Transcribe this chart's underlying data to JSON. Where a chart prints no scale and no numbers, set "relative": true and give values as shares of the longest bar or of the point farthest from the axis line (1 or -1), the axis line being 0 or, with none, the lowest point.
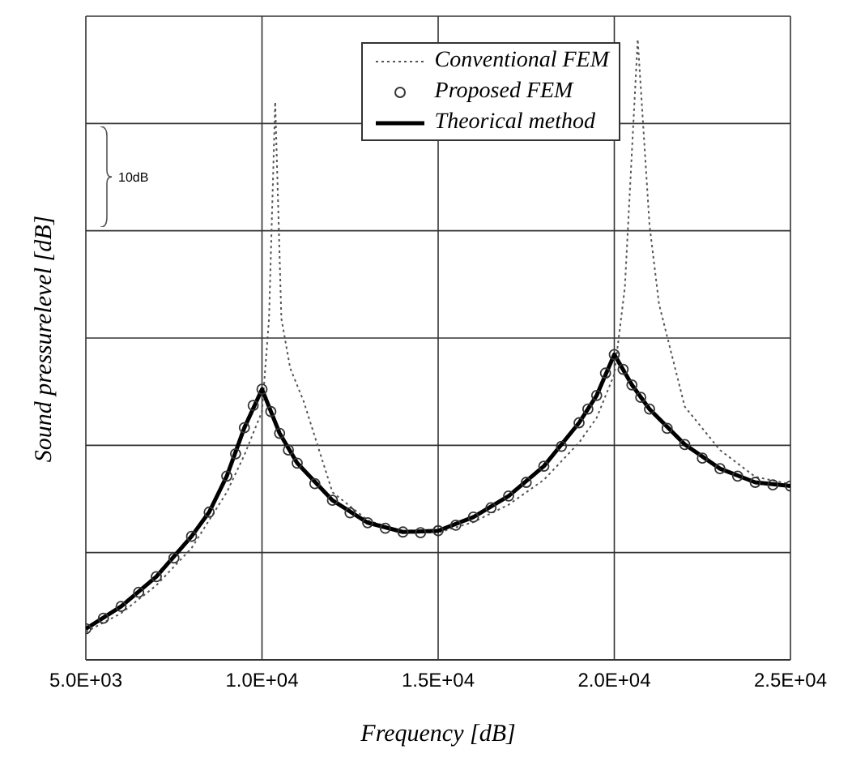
{
  "chart_data": {
    "type": "line",
    "relative": true,
    "xlabel": "Frequency [dB]",
    "ylabel": "Sound pressurelevel [dB]",
    "xlim": [
      5000,
      25000
    ],
    "xticks": [
      {
        "value": 5000,
        "label": "5.0E+03"
      },
      {
        "value": 10000,
        "label": "1.0E+04"
      },
      {
        "value": 15000,
        "label": "1.5E+04"
      },
      {
        "value": 20000,
        "label": "2.0E+04"
      },
      {
        "value": 25000,
        "label": "2.5E+04"
      }
    ],
    "grid": true,
    "legend": "top right",
    "annotations": [
      "10dB"
    ],
    "series": [
      {
        "name": "Conventional FEM",
        "type": "line",
        "color": "#555555",
        "line_style": "dotted",
        "marker": "none",
        "x": [
          5000,
          6000,
          7000,
          8000,
          9000,
          9500,
          10000,
          10200,
          10375,
          10550,
          10800,
          11180,
          12000,
          13000,
          14000,
          15000,
          16000,
          17000,
          18000,
          19000,
          19500,
          20000,
          20300,
          20665,
          21000,
          21270,
          22000,
          23000,
          24000,
          25000
        ],
        "values": [
          0.045,
          0.075,
          0.12,
          0.18,
          0.27,
          0.33,
          0.4,
          0.55,
          0.899,
          0.55,
          0.47,
          0.417,
          0.27,
          0.225,
          0.205,
          0.205,
          0.222,
          0.25,
          0.29,
          0.35,
          0.39,
          0.46,
          0.6,
          1.0,
          0.7,
          0.573,
          0.408,
          0.338,
          0.295,
          0.283
        ]
      },
      {
        "name": "Proposed FEM",
        "type": "scatter",
        "color": "#333333",
        "marker": "circle",
        "x": [
          5000,
          5500,
          6000,
          6500,
          7000,
          7500,
          8000,
          8500,
          9000,
          9250,
          9500,
          9750,
          10000,
          10250,
          10500,
          10750,
          11000,
          11500,
          12000,
          12500,
          13000,
          13500,
          14000,
          14500,
          15000,
          15500,
          16000,
          16500,
          17000,
          17500,
          18000,
          18500,
          19000,
          19250,
          19500,
          19750,
          20000,
          20250,
          20500,
          20750,
          21000,
          21500,
          22000,
          22500,
          23000,
          23500,
          24000,
          24500,
          25000
        ],
        "values": [
          0.05,
          0.067,
          0.086,
          0.109,
          0.134,
          0.164,
          0.199,
          0.238,
          0.296,
          0.332,
          0.374,
          0.41,
          0.436,
          0.4,
          0.365,
          0.338,
          0.317,
          0.284,
          0.257,
          0.237,
          0.221,
          0.212,
          0.206,
          0.205,
          0.208,
          0.217,
          0.23,
          0.245,
          0.264,
          0.286,
          0.312,
          0.344,
          0.382,
          0.404,
          0.426,
          0.462,
          0.492,
          0.468,
          0.443,
          0.423,
          0.404,
          0.373,
          0.347,
          0.325,
          0.308,
          0.296,
          0.286,
          0.282,
          0.28
        ]
      },
      {
        "name": "Theorical method",
        "type": "line",
        "color": "#000000",
        "line_style": "solid",
        "marker": "none",
        "x": [
          5000,
          6000,
          7000,
          8000,
          8500,
          9000,
          9500,
          10000,
          10500,
          11000,
          12000,
          13000,
          14000,
          15000,
          16000,
          17000,
          18000,
          19000,
          19500,
          20000,
          20500,
          21000,
          22000,
          23000,
          24000,
          25000
        ],
        "values": [
          0.05,
          0.086,
          0.134,
          0.199,
          0.238,
          0.296,
          0.374,
          0.436,
          0.365,
          0.317,
          0.257,
          0.221,
          0.206,
          0.208,
          0.23,
          0.264,
          0.312,
          0.382,
          0.426,
          0.492,
          0.443,
          0.404,
          0.347,
          0.308,
          0.286,
          0.28
        ]
      }
    ]
  }
}
